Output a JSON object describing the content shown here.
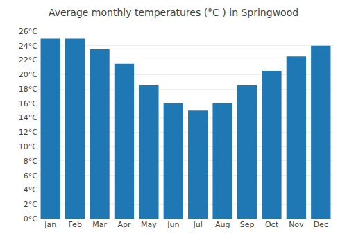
{
  "chart_data": {
    "type": "bar",
    "title": "Average monthly temperatures (°C ) in Springwood",
    "categories": [
      "Jan",
      "Feb",
      "Mar",
      "Apr",
      "May",
      "Jun",
      "Jul",
      "Aug",
      "Sep",
      "Oct",
      "Nov",
      "Dec"
    ],
    "values": [
      25.0,
      25.0,
      23.5,
      21.5,
      18.5,
      16.0,
      15.0,
      16.0,
      18.5,
      20.5,
      22.5,
      24.0
    ],
    "ylim": [
      0,
      26
    ],
    "yticks": [
      {
        "value": 0,
        "label": "0°C"
      },
      {
        "value": 2,
        "label": "2°C"
      },
      {
        "value": 4,
        "label": "4°C"
      },
      {
        "value": 6,
        "label": "6°C"
      },
      {
        "value": 8,
        "label": "8°C"
      },
      {
        "value": 10,
        "label": "10°C"
      },
      {
        "value": 12,
        "label": "12°C"
      },
      {
        "value": 14,
        "label": "14°C"
      },
      {
        "value": 16,
        "label": "16°C"
      },
      {
        "value": 18,
        "label": "18°C"
      },
      {
        "value": 20,
        "label": "20°C"
      },
      {
        "value": 22,
        "label": "22°C"
      },
      {
        "value": 24,
        "label": "24°C"
      },
      {
        "value": 26,
        "label": "26°C"
      }
    ],
    "grid": true
  }
}
